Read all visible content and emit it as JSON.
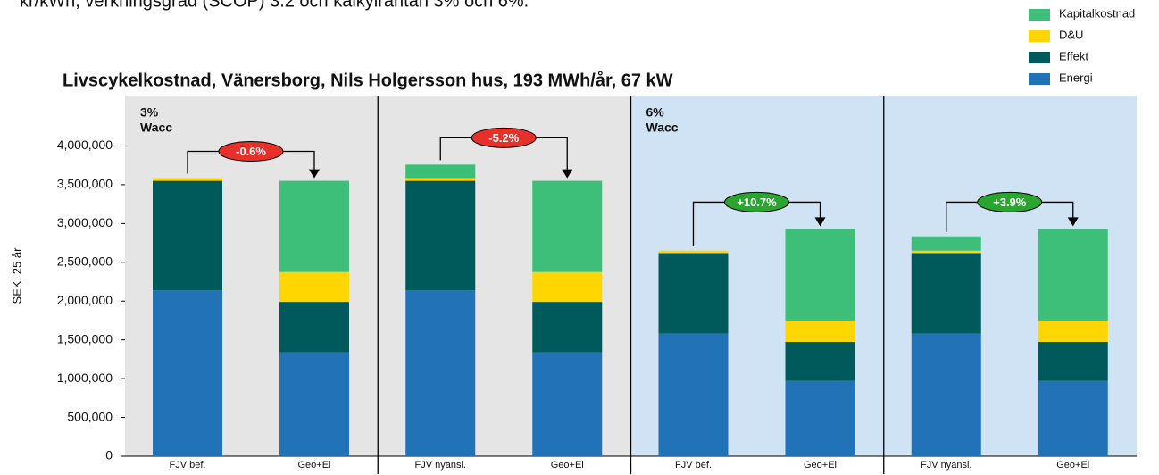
{
  "chart_data": {
    "type": "stacked-bar",
    "caption": "kr/kWh, verkningsgrad (SCOP) 3.2 och kalkylräntan 3% och 6%.",
    "title": "Livscykelkostnad, Vänersborg, Nils Holgersson hus, 193 MWh/år, 67 kW",
    "y_label": "SEK, 25 år",
    "categories": [
      "FJV bef.",
      "Geo+El",
      "FJV nyansl.",
      "Geo+El",
      "FJV bef.",
      "Geo+El",
      "FJV nyansl.",
      "Geo+El"
    ],
    "series": [
      {
        "name": "Energi",
        "color": "#2272b8",
        "values": [
          2140000,
          1340000,
          2140000,
          1340000,
          1580000,
          970000,
          1580000,
          970000
        ]
      },
      {
        "name": "Effekt",
        "color": "#005a5c",
        "values": [
          1410000,
          650000,
          1410000,
          650000,
          1040000,
          505000,
          1040000,
          505000
        ]
      },
      {
        "name": "D&U",
        "color": "#ffd600",
        "values": [
          35000,
          385000,
          35000,
          385000,
          30000,
          275000,
          30000,
          275000
        ]
      },
      {
        "name": "Kapitalkostnad",
        "color": "#3ebf79",
        "values": [
          0,
          1175000,
          175000,
          1175000,
          0,
          1180000,
          185000,
          1180000
        ]
      }
    ],
    "panel_labels": [
      [
        "3%",
        "Wacc"
      ],
      null,
      [
        "6%",
        "Wacc"
      ],
      null
    ],
    "panel_backgrounds": [
      "#e5e5e5",
      "#e5e5e5",
      "#cfe3f5",
      "#cfe3f5"
    ],
    "changes": [
      {
        "text": "-0.6%",
        "color": "#e8302a"
      },
      {
        "text": "-5.2%",
        "color": "#e8302a"
      },
      {
        "text": "+10.7%",
        "color": "#2aa52f"
      },
      {
        "text": "+3.9%",
        "color": "#2aa52f"
      }
    ],
    "ylim": [
      0,
      4650000
    ],
    "yticks": [
      0,
      {
        "value": 500000,
        "label": "500,000"
      },
      {
        "value": 1000000,
        "label": "1,000,000"
      },
      {
        "value": 1500000,
        "label": "1,500,000"
      },
      {
        "value": 2000000,
        "label": "2,000,000"
      },
      {
        "value": 2500000,
        "label": "2,500,000"
      },
      {
        "value": 3000000,
        "label": "3,000,000"
      },
      {
        "value": 3500000,
        "label": "3,500,000"
      },
      {
        "value": 4000000,
        "label": "4,000,000"
      }
    ]
  }
}
